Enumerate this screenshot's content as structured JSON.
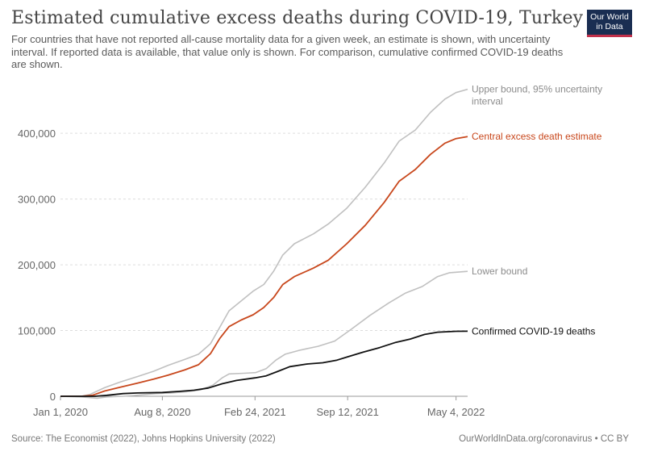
{
  "header": {
    "title": "Estimated cumulative excess deaths during COVID-19, Turkey",
    "subtitle": "For countries that have not reported all-cause mortality data for a given week, an estimate is shown, with uncertainty interval. If reported data is available, that value only is shown. For comparison, cumulative confirmed COVID-19 deaths are shown.",
    "logo_text": "Our World in Data"
  },
  "footer": {
    "source": "Source: The Economist (2022), Johns Hopkins University (2022)",
    "license": "OurWorldInData.org/coronavirus • CC BY"
  },
  "colors": {
    "central": "#c8471c",
    "bounds": "#c0c0c0",
    "confirmed": "#111111",
    "grid": "#dddddd",
    "axis": "#999999"
  },
  "chart_data": {
    "type": "line",
    "title": "Estimated cumulative excess deaths during COVID-19, Turkey",
    "ylim": [
      0,
      480000
    ],
    "y_ticks": [
      0,
      100000,
      200000,
      300000,
      400000
    ],
    "y_tick_labels": [
      "0",
      "100,000",
      "200,000",
      "300,000",
      "400,000"
    ],
    "x_range": [
      "2020-01-01",
      "2022-05-29"
    ],
    "x_ticks": [
      "2020-01-01",
      "2020-08-08",
      "2021-02-24",
      "2021-09-12",
      "2022-05-04"
    ],
    "x_tick_labels": [
      "Jan 1, 2020",
      "Aug 8, 2020",
      "Feb 24, 2021",
      "Sep 12, 2021",
      "May 4, 2022"
    ],
    "grid": "horizontal",
    "series": [
      {
        "name": "Upper bound, 95% uncertainty interval",
        "label_lines": [
          "Upper bound, 95% uncertainty",
          "interval"
        ],
        "style": "bounds",
        "points": [
          [
            "2020-01-01",
            0
          ],
          [
            "2020-02-15",
            0
          ],
          [
            "2020-03-05",
            3000
          ],
          [
            "2020-04-05",
            13000
          ],
          [
            "2020-05-10",
            22000
          ],
          [
            "2020-06-15",
            30000
          ],
          [
            "2020-07-20",
            38000
          ],
          [
            "2020-08-20",
            47000
          ],
          [
            "2020-09-25",
            56000
          ],
          [
            "2020-10-25",
            64000
          ],
          [
            "2020-11-20",
            80000
          ],
          [
            "2020-12-10",
            105000
          ],
          [
            "2020-12-30",
            130000
          ],
          [
            "2021-01-25",
            145000
          ],
          [
            "2021-02-20",
            160000
          ],
          [
            "2021-03-15",
            170000
          ],
          [
            "2021-04-05",
            190000
          ],
          [
            "2021-04-25",
            215000
          ],
          [
            "2021-05-20",
            232000
          ],
          [
            "2021-06-30",
            247000
          ],
          [
            "2021-08-01",
            262000
          ],
          [
            "2021-09-10",
            286000
          ],
          [
            "2021-10-20",
            318000
          ],
          [
            "2021-11-30",
            355000
          ],
          [
            "2022-01-01",
            388000
          ],
          [
            "2022-02-05",
            405000
          ],
          [
            "2022-03-10",
            432000
          ],
          [
            "2022-04-10",
            452000
          ],
          [
            "2022-05-04",
            462000
          ],
          [
            "2022-05-29",
            467000
          ]
        ]
      },
      {
        "name": "Central excess death estimate",
        "label_lines": [
          "Central excess death estimate"
        ],
        "style": "central",
        "points": [
          [
            "2020-01-01",
            0
          ],
          [
            "2020-02-15",
            0
          ],
          [
            "2020-03-10",
            1500
          ],
          [
            "2020-04-05",
            8000
          ],
          [
            "2020-05-10",
            14000
          ],
          [
            "2020-06-15",
            20000
          ],
          [
            "2020-07-20",
            26000
          ],
          [
            "2020-08-20",
            32000
          ],
          [
            "2020-09-25",
            40000
          ],
          [
            "2020-10-25",
            48000
          ],
          [
            "2020-11-20",
            65000
          ],
          [
            "2020-12-10",
            88000
          ],
          [
            "2020-12-30",
            106000
          ],
          [
            "2021-01-25",
            116000
          ],
          [
            "2021-02-20",
            124000
          ],
          [
            "2021-03-15",
            135000
          ],
          [
            "2021-04-05",
            150000
          ],
          [
            "2021-04-25",
            170000
          ],
          [
            "2021-05-20",
            182000
          ],
          [
            "2021-06-30",
            195000
          ],
          [
            "2021-08-01",
            207000
          ],
          [
            "2021-09-10",
            232000
          ],
          [
            "2021-10-20",
            260000
          ],
          [
            "2021-11-30",
            295000
          ],
          [
            "2022-01-01",
            327000
          ],
          [
            "2022-02-05",
            345000
          ],
          [
            "2022-03-10",
            368000
          ],
          [
            "2022-04-10",
            385000
          ],
          [
            "2022-05-04",
            392000
          ],
          [
            "2022-05-29",
            395000
          ]
        ]
      },
      {
        "name": "Lower bound",
        "label_lines": [
          "Lower bound"
        ],
        "style": "bounds",
        "points": [
          [
            "2020-01-01",
            0
          ],
          [
            "2020-02-15",
            -1000
          ],
          [
            "2020-03-20",
            -3000
          ],
          [
            "2020-04-10",
            -1000
          ],
          [
            "2020-05-15",
            0
          ],
          [
            "2020-06-20",
            2000
          ],
          [
            "2020-07-25",
            4000
          ],
          [
            "2020-08-25",
            5000
          ],
          [
            "2020-09-30",
            7000
          ],
          [
            "2020-10-30",
            10000
          ],
          [
            "2020-11-25",
            17000
          ],
          [
            "2020-12-15",
            28000
          ],
          [
            "2020-12-30",
            34000
          ],
          [
            "2021-01-30",
            35000
          ],
          [
            "2021-02-25",
            36000
          ],
          [
            "2021-03-20",
            42000
          ],
          [
            "2021-04-10",
            55000
          ],
          [
            "2021-04-30",
            64000
          ],
          [
            "2021-05-31",
            70000
          ],
          [
            "2021-07-10",
            76000
          ],
          [
            "2021-08-15",
            84000
          ],
          [
            "2021-09-20",
            102000
          ],
          [
            "2021-10-30",
            123000
          ],
          [
            "2021-12-10",
            142000
          ],
          [
            "2022-01-15",
            157000
          ],
          [
            "2022-02-20",
            167000
          ],
          [
            "2022-03-25",
            182000
          ],
          [
            "2022-04-20",
            188000
          ],
          [
            "2022-05-29",
            190000
          ]
        ]
      },
      {
        "name": "Confirmed COVID-19 deaths",
        "label_lines": [
          "Confirmed COVID-19 deaths"
        ],
        "style": "confirmed",
        "points": [
          [
            "2020-01-01",
            0
          ],
          [
            "2020-03-15",
            0
          ],
          [
            "2020-04-10",
            1500
          ],
          [
            "2020-05-15",
            4000
          ],
          [
            "2020-06-15",
            5000
          ],
          [
            "2020-08-08",
            5800
          ],
          [
            "2020-09-15",
            7500
          ],
          [
            "2020-10-15",
            9200
          ],
          [
            "2020-11-15",
            12500
          ],
          [
            "2020-12-15",
            19000
          ],
          [
            "2021-01-15",
            24000
          ],
          [
            "2021-02-24",
            28000
          ],
          [
            "2021-03-20",
            31000
          ],
          [
            "2021-04-15",
            38000
          ],
          [
            "2021-05-10",
            45000
          ],
          [
            "2021-06-15",
            49000
          ],
          [
            "2021-07-20",
            51000
          ],
          [
            "2021-08-20",
            55000
          ],
          [
            "2021-09-12",
            60000
          ],
          [
            "2021-10-15",
            67000
          ],
          [
            "2021-11-20",
            74000
          ],
          [
            "2021-12-25",
            82000
          ],
          [
            "2022-01-25",
            87000
          ],
          [
            "2022-02-25",
            94000
          ],
          [
            "2022-03-25",
            97500
          ],
          [
            "2022-05-04",
            98800
          ],
          [
            "2022-05-29",
            99000
          ]
        ]
      }
    ]
  }
}
